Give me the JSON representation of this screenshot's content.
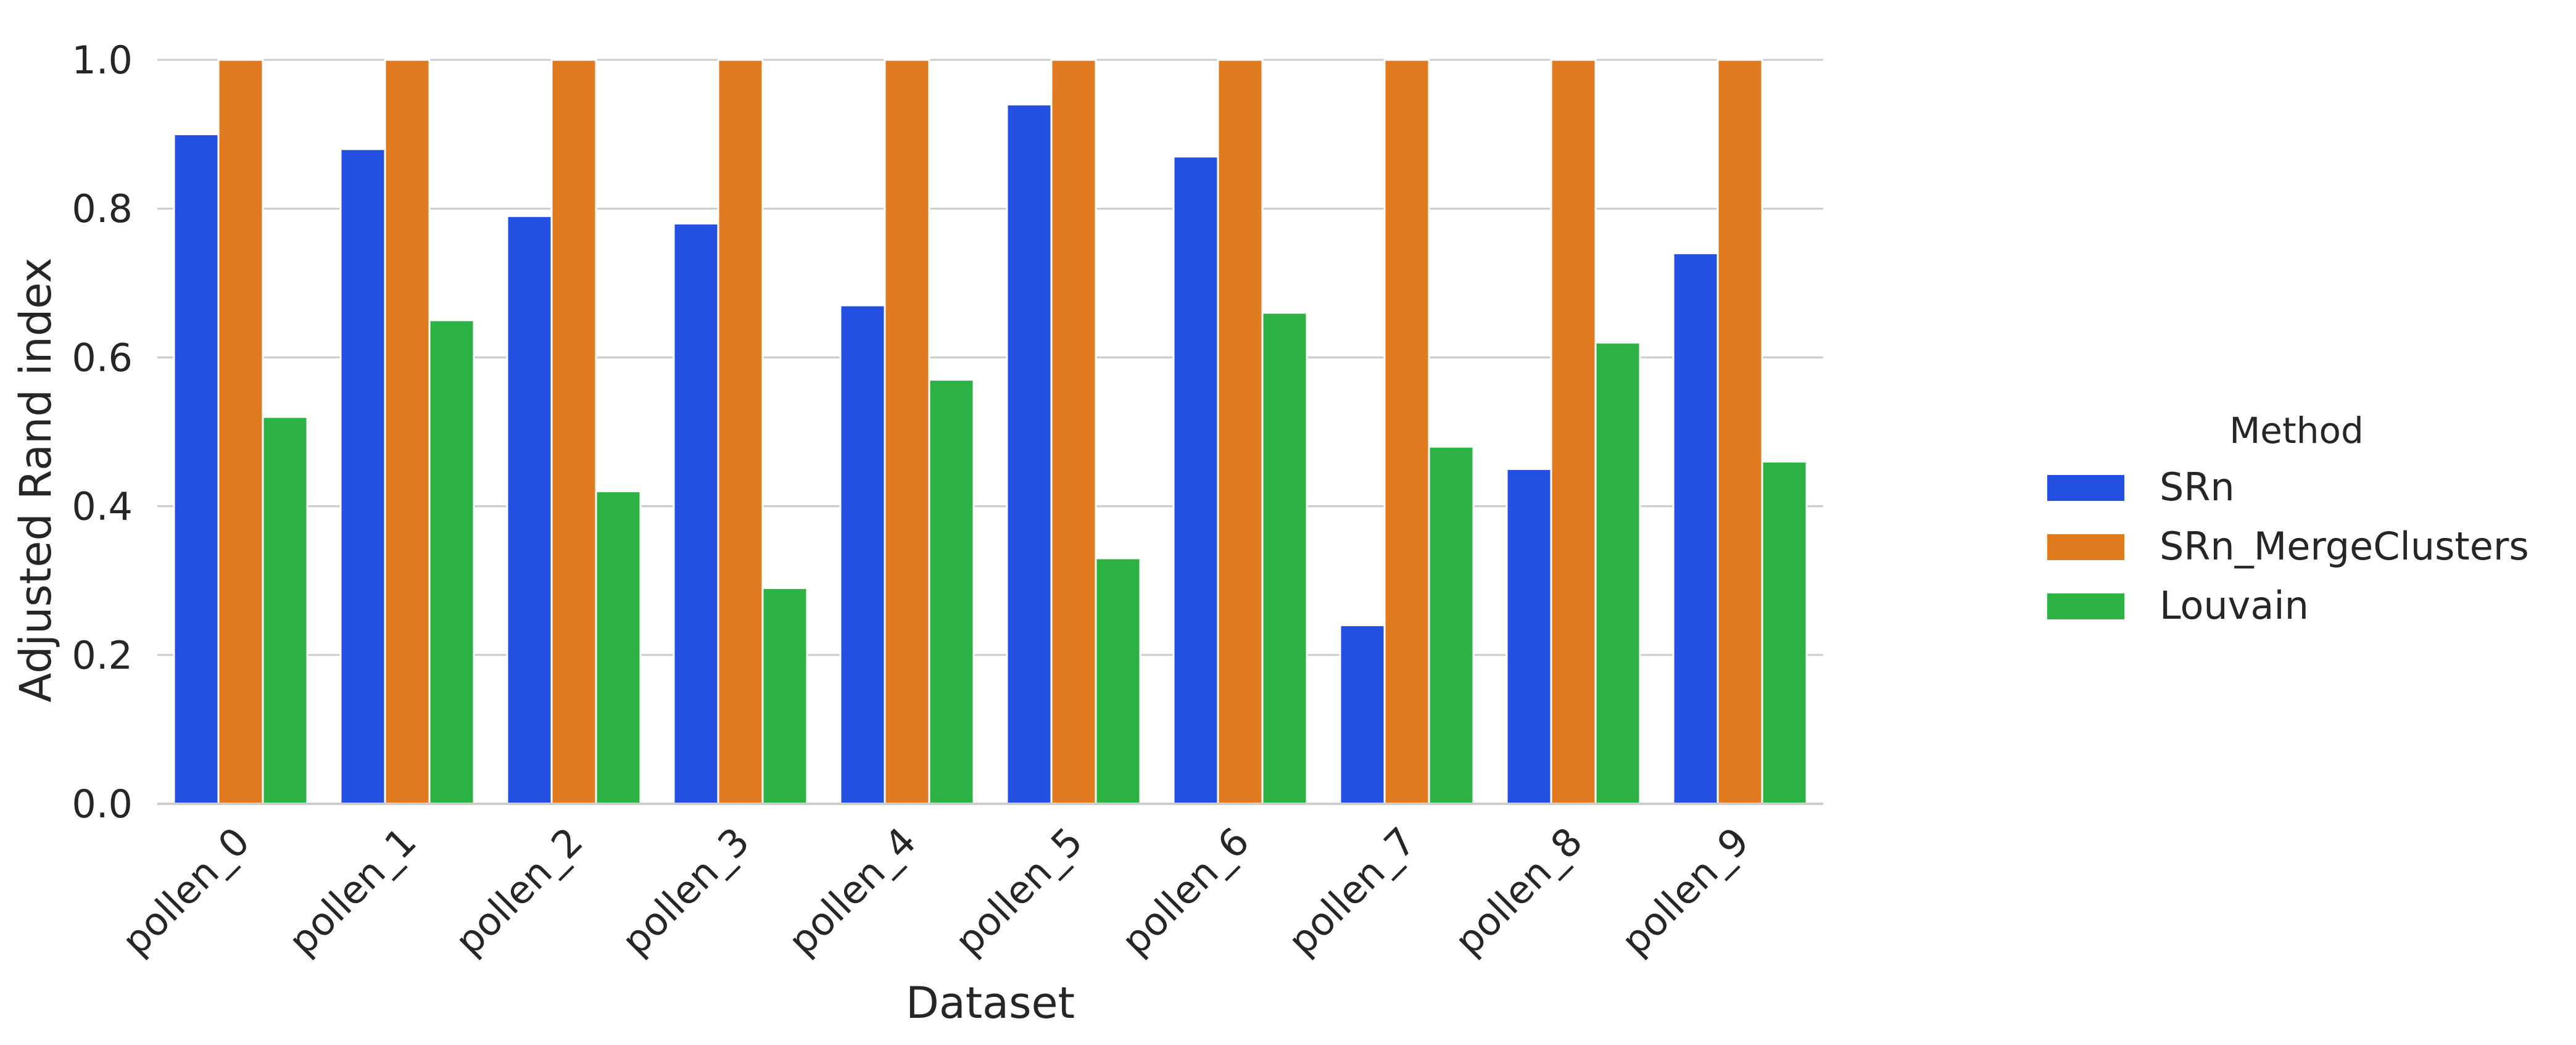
{
  "chart_data": {
    "type": "bar",
    "categories": [
      "pollen_0",
      "pollen_1",
      "pollen_2",
      "pollen_3",
      "pollen_4",
      "pollen_5",
      "pollen_6",
      "pollen_7",
      "pollen_8",
      "pollen_9"
    ],
    "series": [
      {
        "name": "SRn",
        "color": "#2350e0",
        "values": [
          0.9,
          0.88,
          0.79,
          0.78,
          0.67,
          0.94,
          0.87,
          0.24,
          0.45,
          0.74
        ]
      },
      {
        "name": "SRn_MergeClusters",
        "color": "#e07b20",
        "values": [
          1.0,
          1.0,
          1.0,
          1.0,
          1.0,
          1.0,
          1.0,
          1.0,
          1.0,
          1.0
        ]
      },
      {
        "name": "Louvain",
        "color": "#2db344",
        "values": [
          0.52,
          0.65,
          0.42,
          0.29,
          0.57,
          0.33,
          0.66,
          0.48,
          0.62,
          0.46
        ]
      }
    ],
    "title": "",
    "xlabel": "Dataset",
    "ylabel": "Adjusted Rand index",
    "ylim": [
      0,
      1.0
    ],
    "yticks": [
      "0.0",
      "0.2",
      "0.4",
      "0.6",
      "0.8",
      "1.0"
    ],
    "grid": true,
    "legend": {
      "title": "Method",
      "placement": "right"
    }
  }
}
